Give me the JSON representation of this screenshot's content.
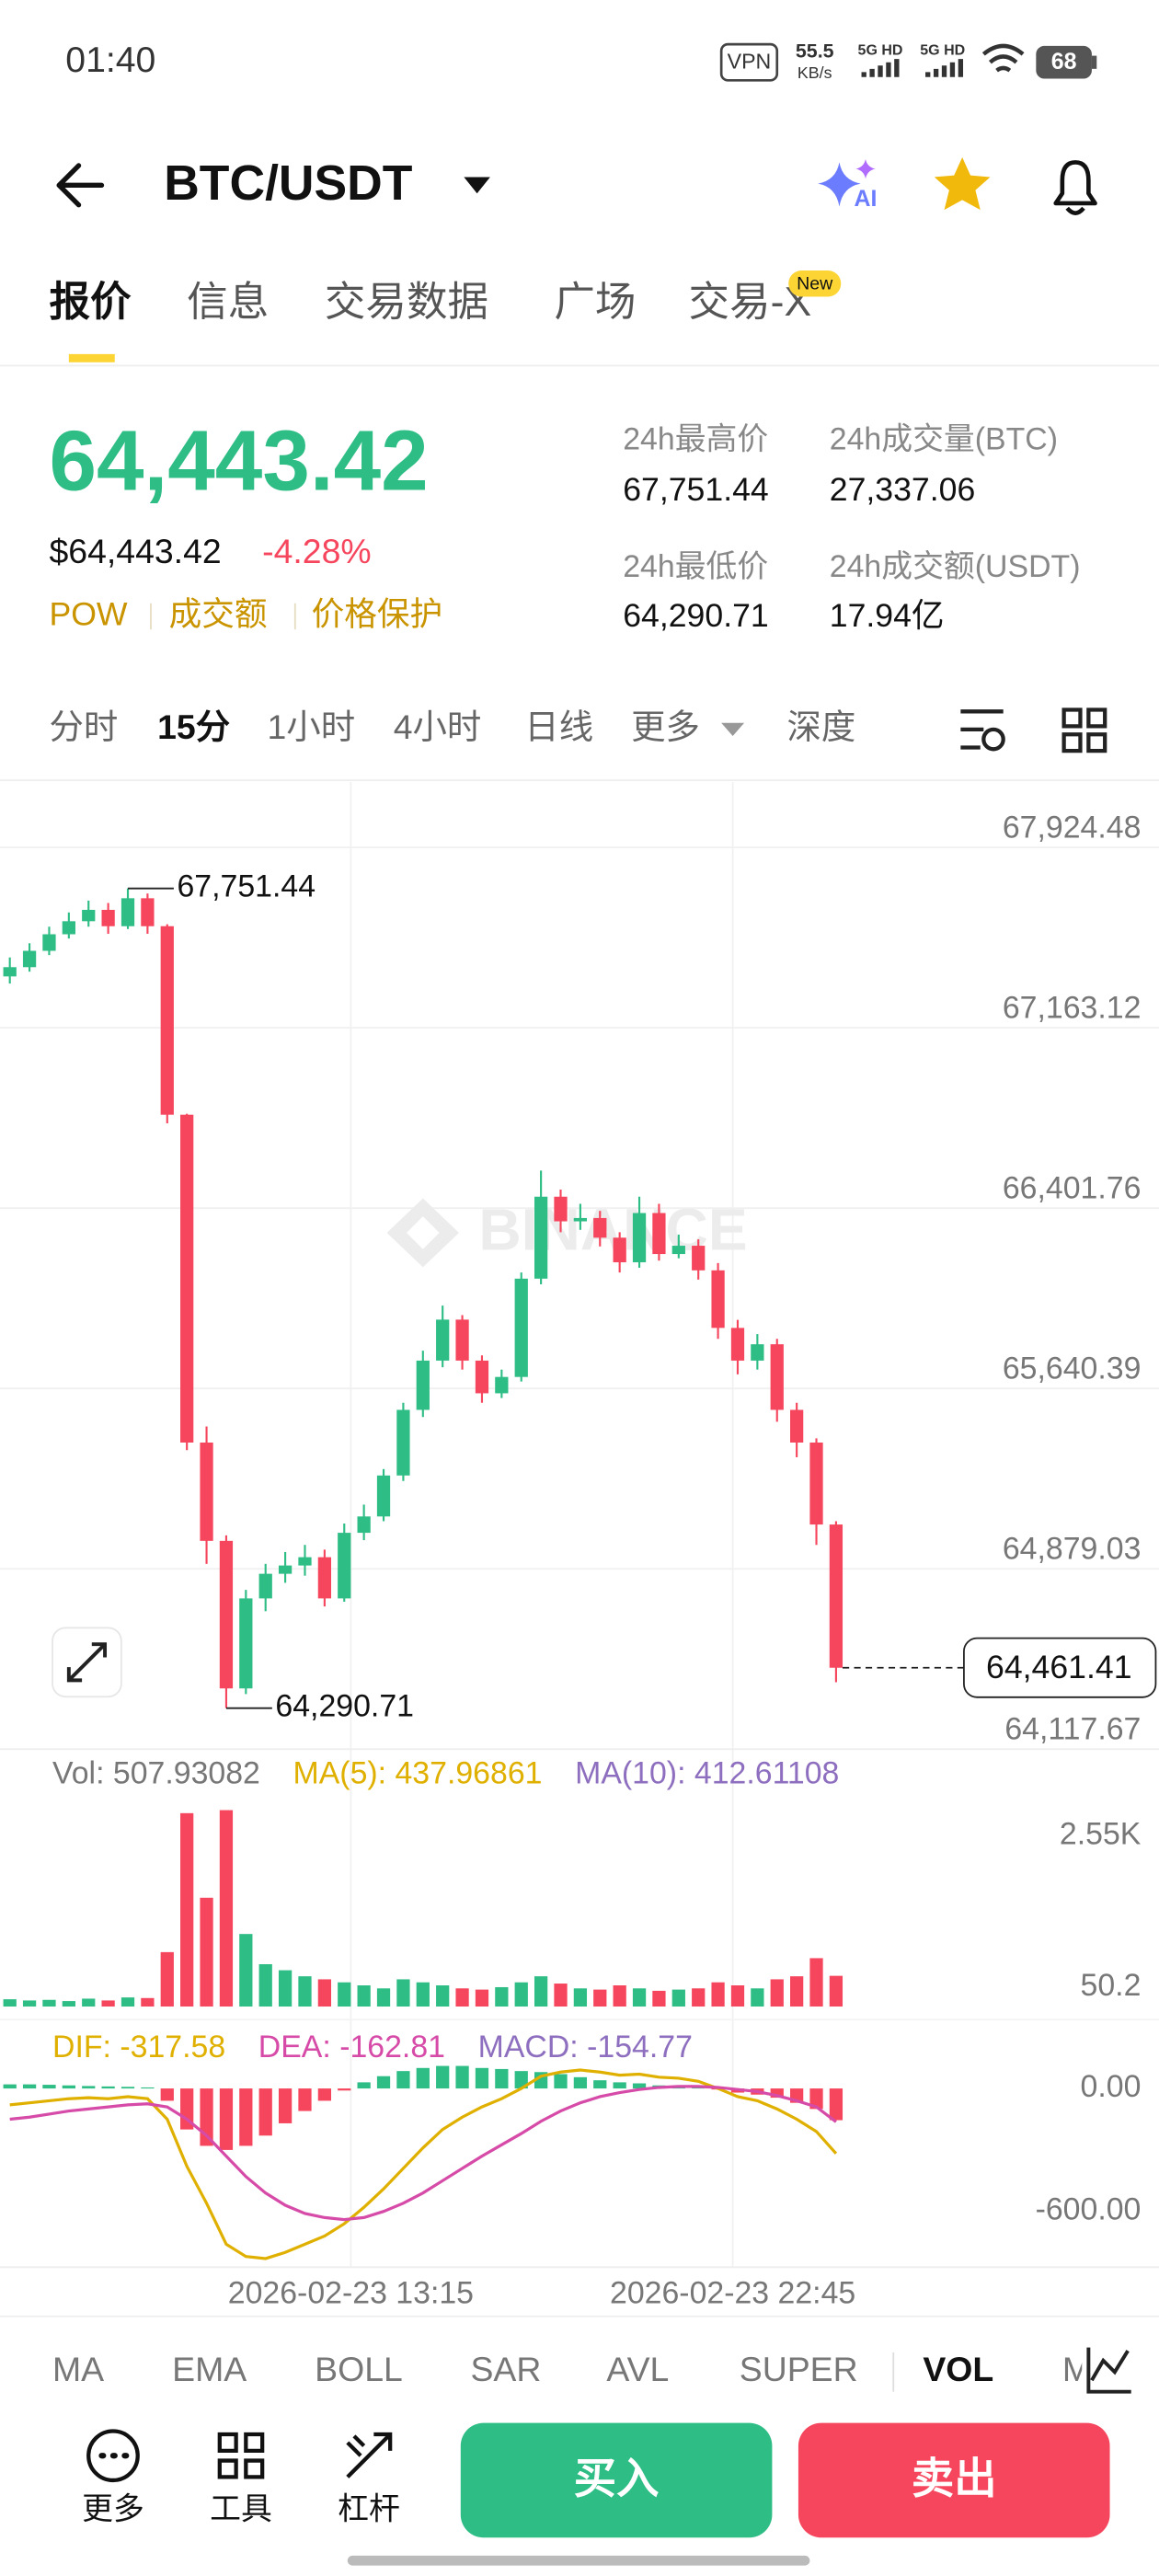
{
  "status_bar": {
    "time": "01:40",
    "vpn": "VPN",
    "speed": "55.5",
    "speed_unit": "KB/s",
    "signal_1": "5G HD",
    "signal_2": "5G HD",
    "battery": "68"
  },
  "header": {
    "pair": "BTC/USDT",
    "ai_badge": "AI"
  },
  "tabs": [
    {
      "label": "报价"
    },
    {
      "label": "信息"
    },
    {
      "label": "交易数据"
    },
    {
      "label": "广场"
    },
    {
      "label": "交易-X",
      "badge": "New"
    }
  ],
  "ticker": {
    "price": "64,443.42",
    "usd_price": "$64,443.42",
    "change": "-4.28%",
    "tags": [
      "POW",
      "成交额",
      "价格保护"
    ],
    "stats": [
      {
        "label": "24h最高价",
        "value": "67,751.44"
      },
      {
        "label": "24h成交量(BTC)",
        "value": "27,337.06"
      },
      {
        "label": "24h最低价",
        "value": "64,290.71"
      },
      {
        "label": "24h成交额(USDT)",
        "value": "17.94亿"
      }
    ]
  },
  "intervals": [
    "分时",
    "15分",
    "1小时",
    "4小时",
    "日线",
    "更多",
    "深度"
  ],
  "chart_data": {
    "type": "candlestick",
    "watermark": "BINANCE",
    "up_color": "#2ebd85",
    "down_color": "#f6465d",
    "open": [
      67380,
      67419,
      67488,
      67558,
      67613,
      67661,
      67592,
      67710,
      67592,
      66796,
      65412,
      64997,
      64374,
      64754,
      64858,
      64893,
      64928,
      64754,
      65031,
      65100,
      65273,
      65550,
      65758,
      65931,
      65758,
      65620,
      65689,
      66104,
      66450,
      66346,
      66360,
      66277,
      66173,
      66381,
      66208,
      66243,
      66139,
      65896,
      65758,
      65827,
      65550,
      65412,
      65066
    ],
    "high": [
      67460,
      67520,
      67590,
      67650,
      67700,
      67690,
      67751.44,
      67730,
      67600,
      66800,
      65480,
      65020,
      64790,
      64900,
      64950,
      64980,
      64960,
      65070,
      65150,
      65300,
      65580,
      65800,
      65990,
      65950,
      65780,
      65720,
      66130,
      66560,
      66480,
      66420,
      66390,
      66300,
      66450,
      66420,
      66290,
      66270,
      66170,
      65930,
      65870,
      65850,
      65580,
      65430,
      65080
    ],
    "low": [
      67350,
      67400,
      67470,
      67540,
      67590,
      67560,
      67580,
      67560,
      66760,
      65380,
      64900,
      64290.71,
      64350,
      64700,
      64820,
      64850,
      64720,
      64740,
      65000,
      65080,
      65250,
      65520,
      65730,
      65720,
      65580,
      65600,
      65670,
      66080,
      66300,
      66310,
      66240,
      66130,
      66150,
      66180,
      66190,
      66100,
      65850,
      65700,
      65720,
      65500,
      65350,
      64980,
      64400
    ],
    "close": [
      67419,
      67488,
      67558,
      67613,
      67661,
      67592,
      67710,
      67592,
      66796,
      65412,
      64997,
      64374,
      64754,
      64858,
      64893,
      64928,
      64754,
      65031,
      65100,
      65273,
      65550,
      65758,
      65931,
      65758,
      65620,
      65689,
      66104,
      66450,
      66346,
      66360,
      66277,
      66173,
      66381,
      66208,
      66243,
      66139,
      65896,
      65758,
      65827,
      65550,
      65412,
      65066,
      64461.41
    ],
    "ylim": [
      64117.67,
      68201
    ],
    "yticks": [
      {
        "value": 67924.48,
        "label": "67,924.48"
      },
      {
        "value": 67163.12,
        "label": "67,163.12"
      },
      {
        "value": 66401.76,
        "label": "66,401.76"
      },
      {
        "value": 65640.39,
        "label": "65,640.39"
      },
      {
        "value": 64879.03,
        "label": "64,879.03"
      },
      {
        "value": 64117.67,
        "label": "64,117.67"
      }
    ],
    "grid": true,
    "max_label": "67,751.44",
    "min_label": "64,290.71",
    "last_price": {
      "value": 64461.41,
      "label": "64,461.41"
    },
    "x_labels": [
      "2026-02-23 13:15",
      "2026-02-23 22:45"
    ],
    "volume": {
      "legend": [
        {
          "text": "Vol: 507.93082",
          "color": "#777777"
        },
        {
          "text": "MA(5): 437.96861",
          "color": "#e0b000"
        },
        {
          "text": "MA(10): 412.61108",
          "color": "#8e6fbf"
        }
      ],
      "values": [
        120,
        100,
        110,
        90,
        130,
        100,
        150,
        140,
        900,
        3200,
        1800,
        3250,
        1200,
        700,
        600,
        500,
        450,
        400,
        350,
        300,
        450,
        400,
        350,
        300,
        280,
        320,
        400,
        500,
        380,
        300,
        280,
        350,
        300,
        260,
        280,
        300,
        400,
        350,
        300,
        450,
        500,
        800,
        507.93082
      ],
      "ylim": [
        0,
        3500
      ],
      "yticks": [
        {
          "value": 2550,
          "label": "2.55K"
        },
        50.2
      ]
    },
    "macd": {
      "legend": [
        {
          "text": "DIF: -317.58",
          "color": "#e0b000"
        },
        {
          "text": "DEA: -162.81",
          "color": "#d64aa8"
        },
        {
          "text": "MACD: -154.77",
          "color": "#8e6fbf"
        }
      ],
      "dif_color": "#e0b000",
      "dea_color": "#d64aa8",
      "hist": [
        20,
        20,
        18,
        15,
        12,
        10,
        8,
        5,
        -60,
        -200,
        -280,
        -300,
        -280,
        -230,
        -170,
        -110,
        -60,
        -10,
        30,
        60,
        85,
        100,
        110,
        110,
        100,
        95,
        85,
        80,
        70,
        55,
        40,
        30,
        25,
        15,
        10,
        5,
        -5,
        -20,
        -30,
        -45,
        -70,
        -100,
        -154.77
      ],
      "dif": [
        -80,
        -70,
        -60,
        -50,
        -45,
        -50,
        -40,
        -50,
        -150,
        -380,
        -560,
        -760,
        -820,
        -830,
        -800,
        -760,
        -720,
        -660,
        -580,
        -490,
        -390,
        -290,
        -200,
        -140,
        -90,
        -50,
        0,
        60,
        80,
        90,
        80,
        65,
        70,
        55,
        50,
        35,
        0,
        -40,
        -60,
        -100,
        -150,
        -210,
        -317.58
      ],
      "dea": [
        -150,
        -140,
        -125,
        -110,
        -100,
        -90,
        -80,
        -75,
        -90,
        -150,
        -230,
        -330,
        -430,
        -510,
        -570,
        -610,
        -630,
        -640,
        -630,
        -600,
        -560,
        -510,
        -450,
        -390,
        -330,
        -275,
        -220,
        -160,
        -110,
        -70,
        -40,
        -20,
        -5,
        5,
        10,
        10,
        5,
        -5,
        -15,
        -35,
        -60,
        -90,
        -162.81
      ],
      "ylim": [
        -872,
        312
      ],
      "yticks": [
        {
          "value": 0,
          "label": "0.00"
        },
        {
          "value": -600,
          "label": "-600.00"
        }
      ]
    }
  },
  "indicators": [
    "MA",
    "EMA",
    "BOLL",
    "SAR",
    "AVL",
    "SUPER",
    "VOL",
    "MACD"
  ],
  "actions": {
    "tools": [
      "更多",
      "工具",
      "杠杆"
    ],
    "buy": "买入",
    "sell": "卖出"
  }
}
